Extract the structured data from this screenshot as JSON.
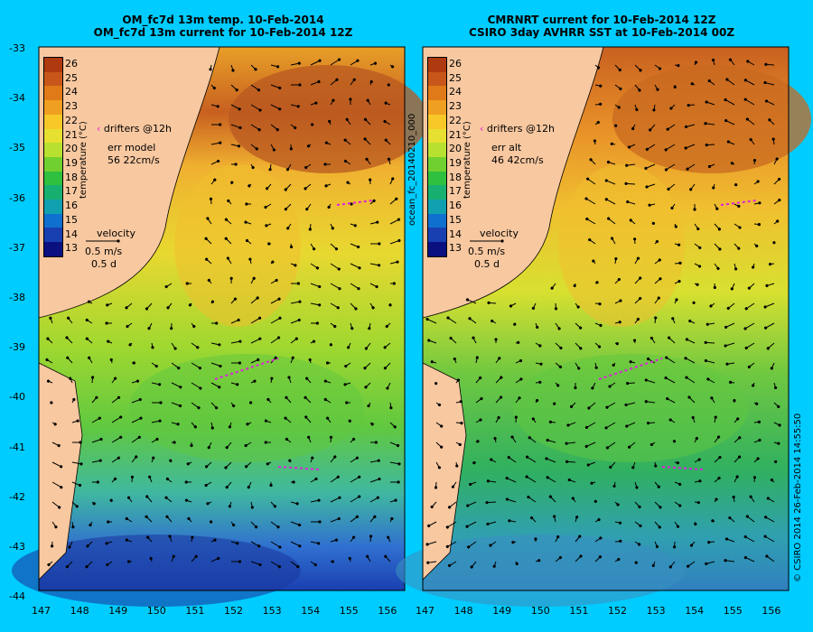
{
  "panels": [
    {
      "title1": "OM_fc7d 13m temp. 10-Feb-2014",
      "title2": "OM_fc7d 13m current for 10-Feb-2014 12Z",
      "legend": {
        "drifters": "drifters @12h",
        "err_label": "err model",
        "err_value": "56 22cm/s"
      },
      "velocity": {
        "label": "velocity",
        "speed": "0.5 m/s",
        "duration": "0.5 d"
      }
    },
    {
      "title1": "CMRNRT current for 10-Feb-2014 12Z",
      "title2": "CSIRO 3day AVHRR SST at 10-Feb-2014 00Z",
      "legend": {
        "drifters": "drifters @12h",
        "err_label": "err alt",
        "err_value": "46 42cm/s"
      },
      "velocity": {
        "label": "velocity",
        "speed": "0.5 m/s",
        "duration": "0.5 d"
      }
    }
  ],
  "colorbar": {
    "label": "temperature (°C)",
    "ticks": [
      "26",
      "25",
      "24",
      "23",
      "22",
      "21",
      "20",
      "19",
      "18",
      "17",
      "16",
      "15",
      "14",
      "13"
    ],
    "colors": [
      "#b03a10",
      "#c8561a",
      "#e07a18",
      "#f0a020",
      "#f8c828",
      "#e8e030",
      "#b8e030",
      "#70d030",
      "#30c040",
      "#18b070",
      "#10a0b0",
      "#1070d0",
      "#1840b0",
      "#0a1080"
    ]
  },
  "axes": {
    "lat_ticks": [
      "-33",
      "-34",
      "-35",
      "-36",
      "-37",
      "-38",
      "-39",
      "-40",
      "-41",
      "-42",
      "-43",
      "-44"
    ],
    "lon_ticks": [
      "147",
      "148",
      "149",
      "150",
      "151",
      "152",
      "153",
      "154",
      "155",
      "156"
    ]
  },
  "side_label": "ocean_fc_20140210_000",
  "credit": "© CSIRO 2014   26-Feb-2014 14:55:50"
}
